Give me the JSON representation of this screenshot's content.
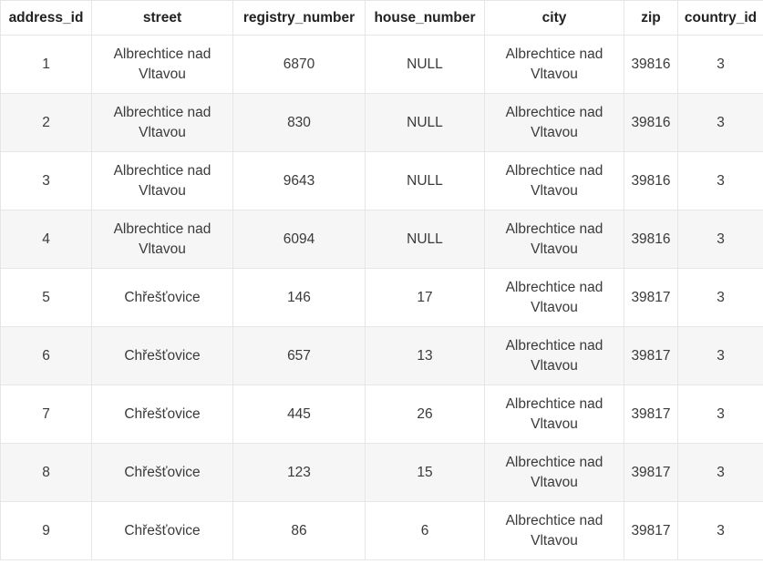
{
  "columns": [
    "address_id",
    "street",
    "registry_number",
    "house_number",
    "city",
    "zip",
    "country_id"
  ],
  "rows": [
    [
      "1",
      "Albrechtice nad Vltavou",
      "6870",
      "NULL",
      "Albrechtice nad Vltavou",
      "39816",
      "3"
    ],
    [
      "2",
      "Albrechtice nad Vltavou",
      "830",
      "NULL",
      "Albrechtice nad Vltavou",
      "39816",
      "3"
    ],
    [
      "3",
      "Albrechtice nad Vltavou",
      "9643",
      "NULL",
      "Albrechtice nad Vltavou",
      "39816",
      "3"
    ],
    [
      "4",
      "Albrechtice nad Vltavou",
      "6094",
      "NULL",
      "Albrechtice nad Vltavou",
      "39816",
      "3"
    ],
    [
      "5",
      "Chřešťovice",
      "146",
      "17",
      "Albrechtice nad Vltavou",
      "39817",
      "3"
    ],
    [
      "6",
      "Chřešťovice",
      "657",
      "13",
      "Albrechtice nad Vltavou",
      "39817",
      "3"
    ],
    [
      "7",
      "Chřešťovice",
      "445",
      "26",
      "Albrechtice nad Vltavou",
      "39817",
      "3"
    ],
    [
      "8",
      "Chřešťovice",
      "123",
      "15",
      "Albrechtice nad Vltavou",
      "39817",
      "3"
    ],
    [
      "9",
      "Chřešťovice",
      "86",
      "6",
      "Albrechtice nad Vltavou",
      "39817",
      "3"
    ]
  ]
}
